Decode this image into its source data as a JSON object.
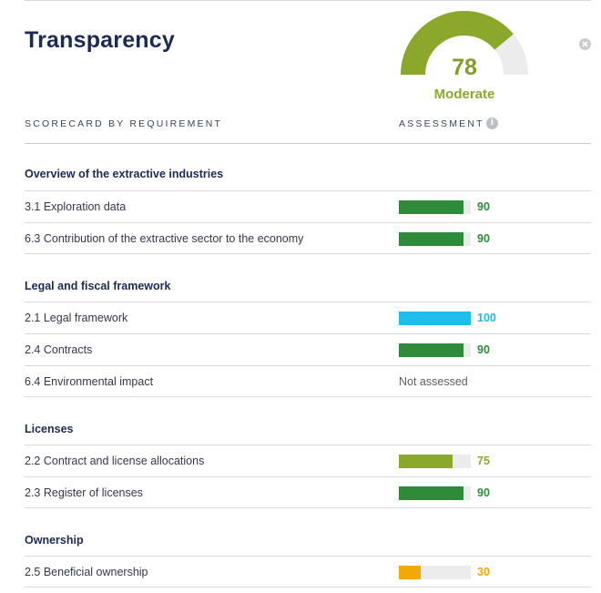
{
  "title": "Transparency",
  "gauge": {
    "score": "78",
    "level": "Moderate",
    "fraction": 0.78,
    "fill_color": "#8aa92c",
    "track_color": "#ececec"
  },
  "columns": {
    "requirement": "SCORECARD BY REQUIREMENT",
    "assessment": "ASSESSMENT"
  },
  "icons": {
    "close": "close-circle-icon",
    "info": "info-icon"
  },
  "status_colors": {
    "90": "#2e8b3a",
    "100": "#1ebdea",
    "75": "#8aa92c",
    "30": "#f2a900"
  },
  "sections": [
    {
      "title": "Overview of the extractive industries",
      "rows": [
        {
          "label": "3.1 Exploration data",
          "value": 90,
          "value_text": "90",
          "color": "#2e8b3a"
        },
        {
          "label": "6.3 Contribution of the extractive sector to the economy",
          "value": 90,
          "value_text": "90",
          "color": "#2e8b3a"
        }
      ]
    },
    {
      "title": "Legal and fiscal framework",
      "rows": [
        {
          "label": "2.1 Legal framework",
          "value": 100,
          "value_text": "100",
          "color": "#1ebdea"
        },
        {
          "label": "2.4 Contracts",
          "value": 90,
          "value_text": "90",
          "color": "#2e8b3a"
        },
        {
          "label": "6.4 Environmental impact",
          "value": null,
          "value_text": "Not assessed",
          "color": "#5a616e"
        }
      ]
    },
    {
      "title": "Licenses",
      "rows": [
        {
          "label": "2.2 Contract and license allocations",
          "value": 75,
          "value_text": "75",
          "color": "#8aa92c"
        },
        {
          "label": "2.3 Register of licenses",
          "value": 90,
          "value_text": "90",
          "color": "#2e8b3a"
        }
      ]
    },
    {
      "title": "Ownership",
      "rows": [
        {
          "label": "2.5 Beneficial ownership",
          "value": 30,
          "value_text": "30",
          "color": "#f2a900"
        }
      ]
    }
  ]
}
